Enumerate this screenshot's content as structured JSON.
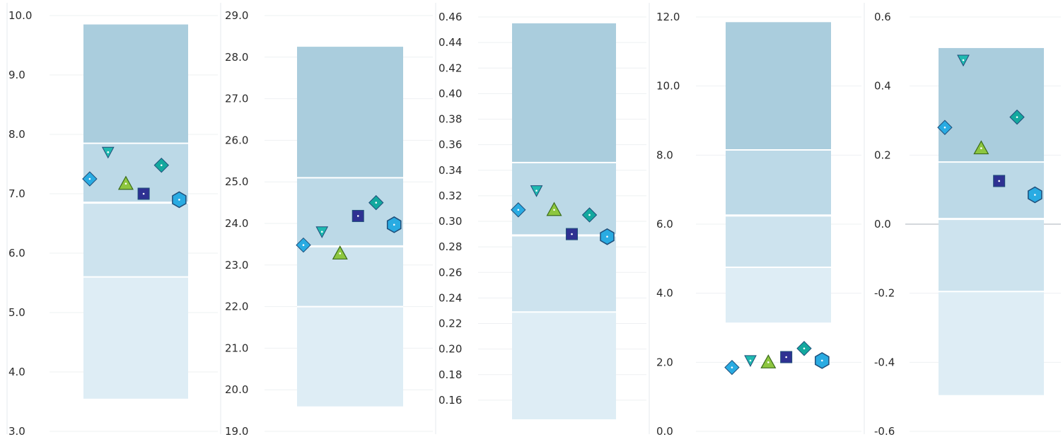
{
  "colors": {
    "band_top": "#aacddd",
    "band_upper_mid": "#bcd9e7",
    "band_lower_mid": "#cde3ee",
    "band_bottom": "#deedf5",
    "diamond_blue": "#29abe2",
    "triangle_teal": "#1fb9b0",
    "triangle_green": "#8dc63f",
    "square_navy": "#2e3192",
    "diamond_teal": "#13a89e",
    "hexagon_blue": "#29abe2",
    "marker_outline": "#1f4e79"
  },
  "chart_data": [
    {
      "type": "scatter",
      "ylim": [
        3.0,
        10.0
      ],
      "yticks": [
        "3.0",
        "4.0",
        "5.0",
        "6.0",
        "7.0",
        "8.0",
        "9.0",
        "10.0"
      ],
      "bands": [
        3.55,
        5.6,
        6.85,
        7.85,
        9.85
      ],
      "thick_divider": 6.85,
      "markers": [
        {
          "shape": "diamond",
          "value": 7.25,
          "color_key": "diamond_blue"
        },
        {
          "shape": "triangle-down",
          "value": 7.7,
          "color_key": "triangle_teal"
        },
        {
          "shape": "triangle-up",
          "value": 7.17,
          "color_key": "triangle_green"
        },
        {
          "shape": "square",
          "value": 7.0,
          "color_key": "square_navy"
        },
        {
          "shape": "diamond",
          "value": 7.48,
          "color_key": "diamond_teal"
        },
        {
          "shape": "hexagon",
          "value": 6.9,
          "color_key": "hexagon_blue"
        }
      ]
    },
    {
      "type": "scatter",
      "ylim": [
        19.0,
        29.0
      ],
      "yticks": [
        "19.0",
        "20.0",
        "21.0",
        "22.0",
        "23.0",
        "24.0",
        "25.0",
        "26.0",
        "27.0",
        "28.0",
        "29.0"
      ],
      "bands": [
        19.6,
        22.0,
        23.45,
        25.1,
        28.25
      ],
      "thick_divider": 23.45,
      "markers": [
        {
          "shape": "diamond",
          "value": 23.48,
          "color_key": "diamond_blue"
        },
        {
          "shape": "triangle-down",
          "value": 23.8,
          "color_key": "triangle_teal"
        },
        {
          "shape": "triangle-up",
          "value": 23.28,
          "color_key": "triangle_green"
        },
        {
          "shape": "square",
          "value": 24.18,
          "color_key": "square_navy"
        },
        {
          "shape": "diamond",
          "value": 24.5,
          "color_key": "diamond_teal"
        },
        {
          "shape": "hexagon",
          "value": 23.97,
          "color_key": "hexagon_blue"
        }
      ]
    },
    {
      "type": "scatter",
      "ylim": [
        0.14,
        0.46
      ],
      "yticks": [
        "0.16",
        "0.18",
        "0.20",
        "0.22",
        "0.24",
        "0.26",
        "0.28",
        "0.30",
        "0.32",
        "0.34",
        "0.36",
        "0.38",
        "0.40",
        "0.42",
        "0.44",
        "0.46"
      ],
      "bands": [
        0.145,
        0.229,
        0.289,
        0.346,
        0.455
      ],
      "thick_divider": 0.289,
      "markers": [
        {
          "shape": "diamond",
          "value": 0.309,
          "color_key": "diamond_blue"
        },
        {
          "shape": "triangle-down",
          "value": 0.324,
          "color_key": "triangle_teal"
        },
        {
          "shape": "triangle-up",
          "value": 0.309,
          "color_key": "triangle_green"
        },
        {
          "shape": "square",
          "value": 0.29,
          "color_key": "square_navy"
        },
        {
          "shape": "diamond",
          "value": 0.305,
          "color_key": "diamond_teal"
        },
        {
          "shape": "hexagon",
          "value": 0.288,
          "color_key": "hexagon_blue"
        }
      ]
    },
    {
      "type": "scatter",
      "ylim": [
        0.0,
        12.0
      ],
      "yticks": [
        "0.0",
        "2.0",
        "4.0",
        "6.0",
        "8.0",
        "10.0",
        "12.0"
      ],
      "bands": [
        3.15,
        4.75,
        6.25,
        8.15,
        11.85
      ],
      "thick_divider": 6.25,
      "markers": [
        {
          "shape": "diamond",
          "value": 1.85,
          "color_key": "diamond_blue"
        },
        {
          "shape": "triangle-down",
          "value": 2.05,
          "color_key": "triangle_teal"
        },
        {
          "shape": "triangle-up",
          "value": 2.0,
          "color_key": "triangle_green"
        },
        {
          "shape": "square",
          "value": 2.15,
          "color_key": "square_navy"
        },
        {
          "shape": "diamond",
          "value": 2.4,
          "color_key": "diamond_teal"
        },
        {
          "shape": "hexagon",
          "value": 2.05,
          "color_key": "hexagon_blue"
        }
      ]
    },
    {
      "type": "scatter",
      "ylim": [
        -0.6,
        0.6
      ],
      "yticks": [
        "-0.6",
        "-0.4",
        "-0.2",
        "0.0",
        "0.2",
        "0.4",
        "0.6"
      ],
      "bands": [
        -0.495,
        -0.195,
        0.015,
        0.18,
        0.51
      ],
      "thick_divider": 0.015,
      "zero_line": true,
      "markers": [
        {
          "shape": "diamond",
          "value": 0.28,
          "color_key": "diamond_blue"
        },
        {
          "shape": "triangle-down",
          "value": 0.475,
          "color_key": "triangle_teal"
        },
        {
          "shape": "triangle-up",
          "value": 0.22,
          "color_key": "triangle_green"
        },
        {
          "shape": "square",
          "value": 0.125,
          "color_key": "square_navy"
        },
        {
          "shape": "diamond",
          "value": 0.31,
          "color_key": "diamond_teal"
        },
        {
          "shape": "hexagon",
          "value": 0.085,
          "color_key": "hexagon_blue"
        }
      ]
    }
  ]
}
